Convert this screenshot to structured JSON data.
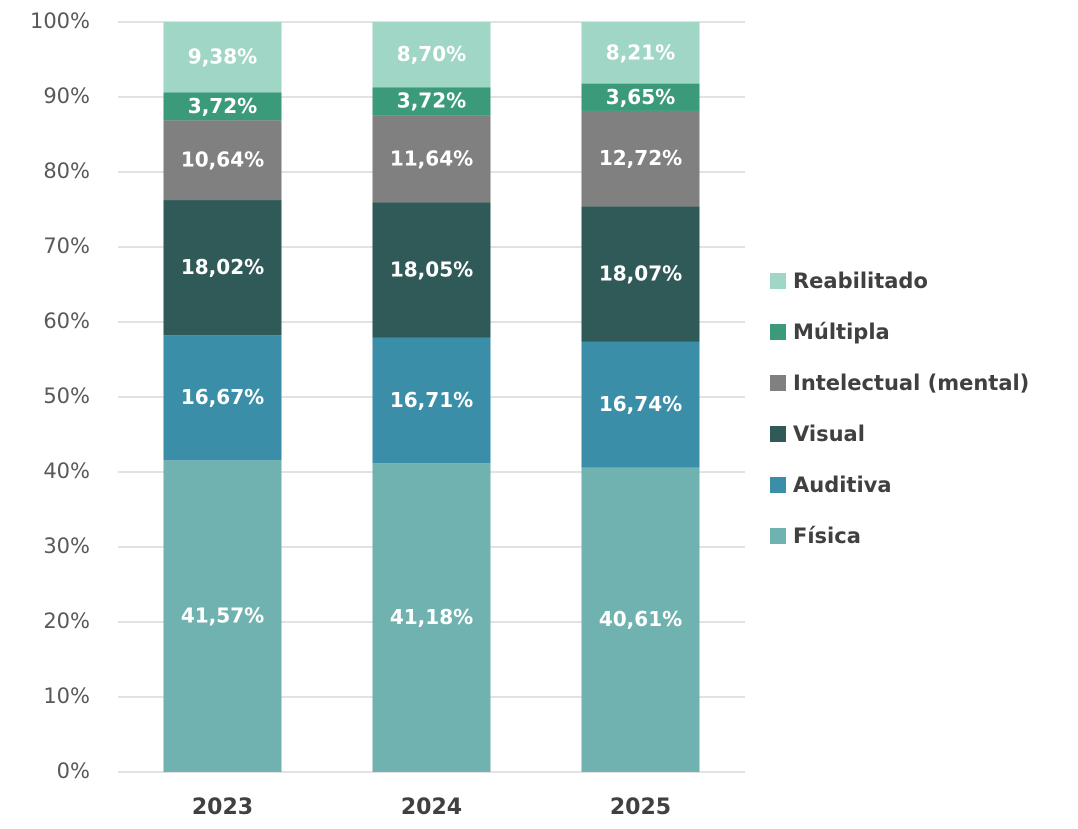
{
  "chart_data": {
    "type": "stacked_bar",
    "categories": [
      "2023",
      "2024",
      "2025"
    ],
    "series": [
      {
        "name": "Física",
        "color": "#70b2b0",
        "values": [
          41.57,
          41.18,
          40.61
        ],
        "value_labels": [
          "41,57%",
          "41,18%",
          "40,61%"
        ]
      },
      {
        "name": "Auditiva",
        "color": "#3a8ea8",
        "values": [
          16.67,
          16.71,
          16.74
        ],
        "value_labels": [
          "16,67%",
          "16,71%",
          "16,74%"
        ]
      },
      {
        "name": "Visual",
        "color": "#305a58",
        "values": [
          18.02,
          18.05,
          18.07
        ],
        "value_labels": [
          "18,02%",
          "18,05%",
          "18,07%"
        ]
      },
      {
        "name": "Intelectual (mental)",
        "color": "#808080",
        "values": [
          10.64,
          11.64,
          12.72
        ],
        "value_labels": [
          "10,64%",
          "11,64%",
          "12,72%"
        ]
      },
      {
        "name": "Múltipla",
        "color": "#3b9a7a",
        "values": [
          3.72,
          3.72,
          3.65
        ],
        "value_labels": [
          "3,72%",
          "3,72%",
          "3,65%"
        ]
      },
      {
        "name": "Reabilitado",
        "color": "#9fd6c5",
        "values": [
          9.38,
          8.7,
          8.21
        ],
        "value_labels": [
          "9,38%",
          "8,70%",
          "8,21%"
        ]
      }
    ],
    "ylim": [
      0,
      100
    ],
    "yticks": [
      {
        "value": 0,
        "label": "0%"
      },
      {
        "value": 10,
        "label": "10%"
      },
      {
        "value": 20,
        "label": "20%"
      },
      {
        "value": 30,
        "label": "30%"
      },
      {
        "value": 40,
        "label": "40%"
      },
      {
        "value": 50,
        "label": "50%"
      },
      {
        "value": 60,
        "label": "60%"
      },
      {
        "value": 70,
        "label": "70%"
      },
      {
        "value": 80,
        "label": "80%"
      },
      {
        "value": 90,
        "label": "90%"
      },
      {
        "value": 100,
        "label": "100%"
      }
    ],
    "grid": true,
    "legend": "right"
  }
}
